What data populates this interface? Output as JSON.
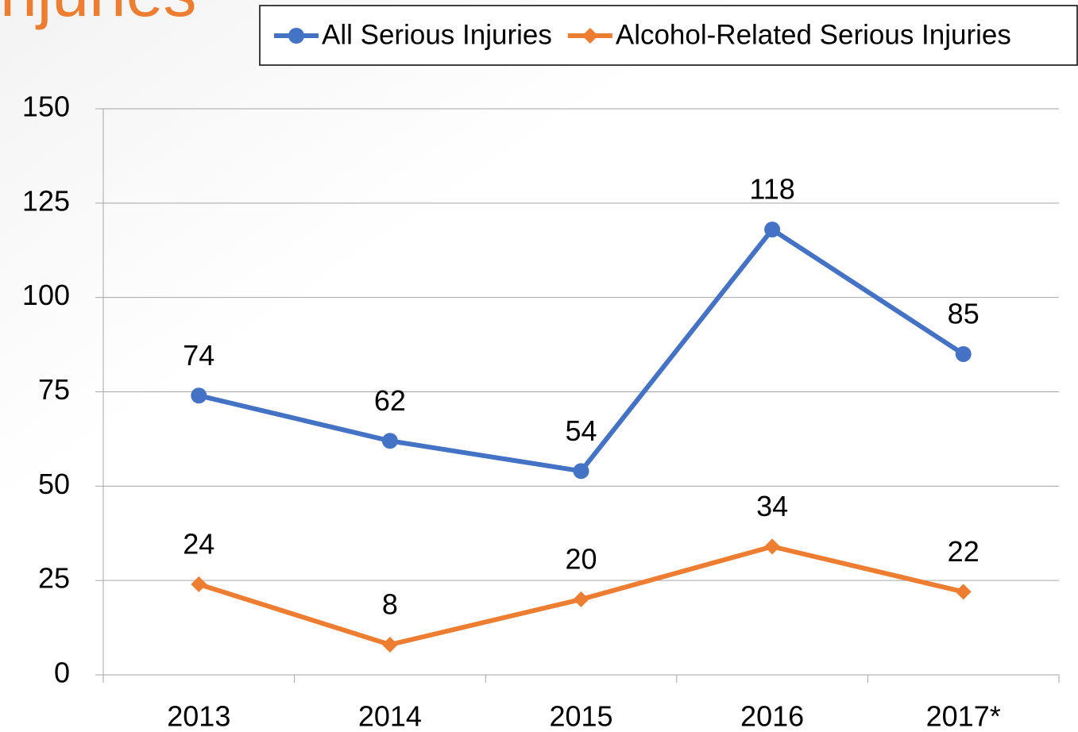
{
  "chart_data": {
    "type": "line",
    "title": "njuries",
    "categories": [
      "2013",
      "2014",
      "2015",
      "2016",
      "2017*"
    ],
    "series": [
      {
        "name": "All Serious Injuries",
        "color": "#4472c4",
        "marker": "circle",
        "values": [
          74,
          62,
          54,
          118,
          85
        ]
      },
      {
        "name": "Alcohol-Related Serious Injuries",
        "color": "#ed7d31",
        "marker": "diamond",
        "values": [
          24,
          8,
          20,
          34,
          22
        ]
      }
    ],
    "ylim": [
      0,
      150
    ],
    "yticks": [
      0,
      25,
      50,
      75,
      100,
      125,
      150
    ],
    "grid": true,
    "legend": "top-right"
  }
}
